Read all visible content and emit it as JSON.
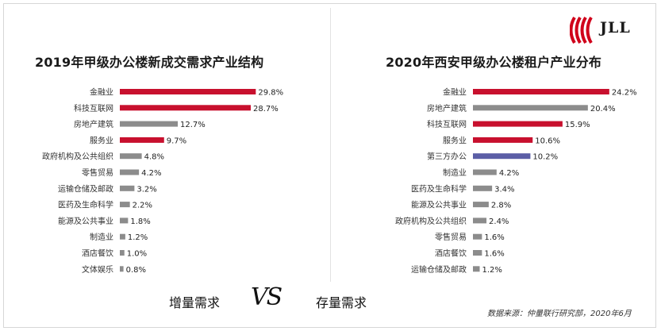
{
  "brand": {
    "logo_text": "JLL",
    "accent": "#d0021b"
  },
  "colors": {
    "red": "#c8102e",
    "gray": "#8c8c8c",
    "purple": "#5b5ea6"
  },
  "captions": {
    "left": "增量需求",
    "vs": "VS",
    "right": "存量需求"
  },
  "source": "数据来源：仲量联行研究部，2020年6月",
  "chart_data": [
    {
      "type": "bar",
      "orientation": "horizontal",
      "title": "2019年甲级办公楼新成交需求产业结构",
      "categories": [
        "金融业",
        "科技互联网",
        "房地产建筑",
        "服务业",
        "政府机构及公共组织",
        "零售贸易",
        "运输仓储及邮政",
        "医药及生命科学",
        "能源及公共事业",
        "制造业",
        "酒店餐饮",
        "文体娱乐"
      ],
      "values": [
        29.8,
        28.7,
        12.7,
        9.7,
        4.8,
        4.2,
        3.2,
        2.2,
        1.8,
        1.2,
        1.0,
        0.8
      ],
      "value_labels": [
        "29.8%",
        "28.7%",
        "12.7%",
        "9.7%",
        "4.8%",
        "4.2%",
        "3.2%",
        "2.2%",
        "1.8%",
        "1.2%",
        "1.0%",
        "0.8%"
      ],
      "bar_colors": [
        "red",
        "red",
        "gray",
        "red",
        "gray",
        "gray",
        "gray",
        "gray",
        "gray",
        "gray",
        "gray",
        "gray"
      ],
      "unit": "%"
    },
    {
      "type": "bar",
      "orientation": "horizontal",
      "title": "2020年西安甲级办公楼租户产业分布",
      "categories": [
        "金融业",
        "房地产建筑",
        "科技互联网",
        "服务业",
        "第三方办公",
        "制造业",
        "医药及生命科学",
        "能源及公共事业",
        "政府机构及公共组织",
        "零售贸易",
        "酒店餐饮",
        "运输仓储及邮政"
      ],
      "values": [
        24.2,
        20.4,
        15.9,
        10.6,
        10.2,
        4.2,
        3.4,
        2.8,
        2.4,
        1.6,
        1.6,
        1.2
      ],
      "value_labels": [
        "24.2%",
        "20.4%",
        "15.9%",
        "10.6%",
        "10.2%",
        "4.2%",
        "3.4%",
        "2.8%",
        "2.4%",
        "1.6%",
        "1.6%",
        "1.2%"
      ],
      "bar_colors": [
        "red",
        "gray",
        "red",
        "red",
        "purple",
        "gray",
        "gray",
        "gray",
        "gray",
        "gray",
        "gray",
        "gray"
      ],
      "unit": "%"
    }
  ]
}
